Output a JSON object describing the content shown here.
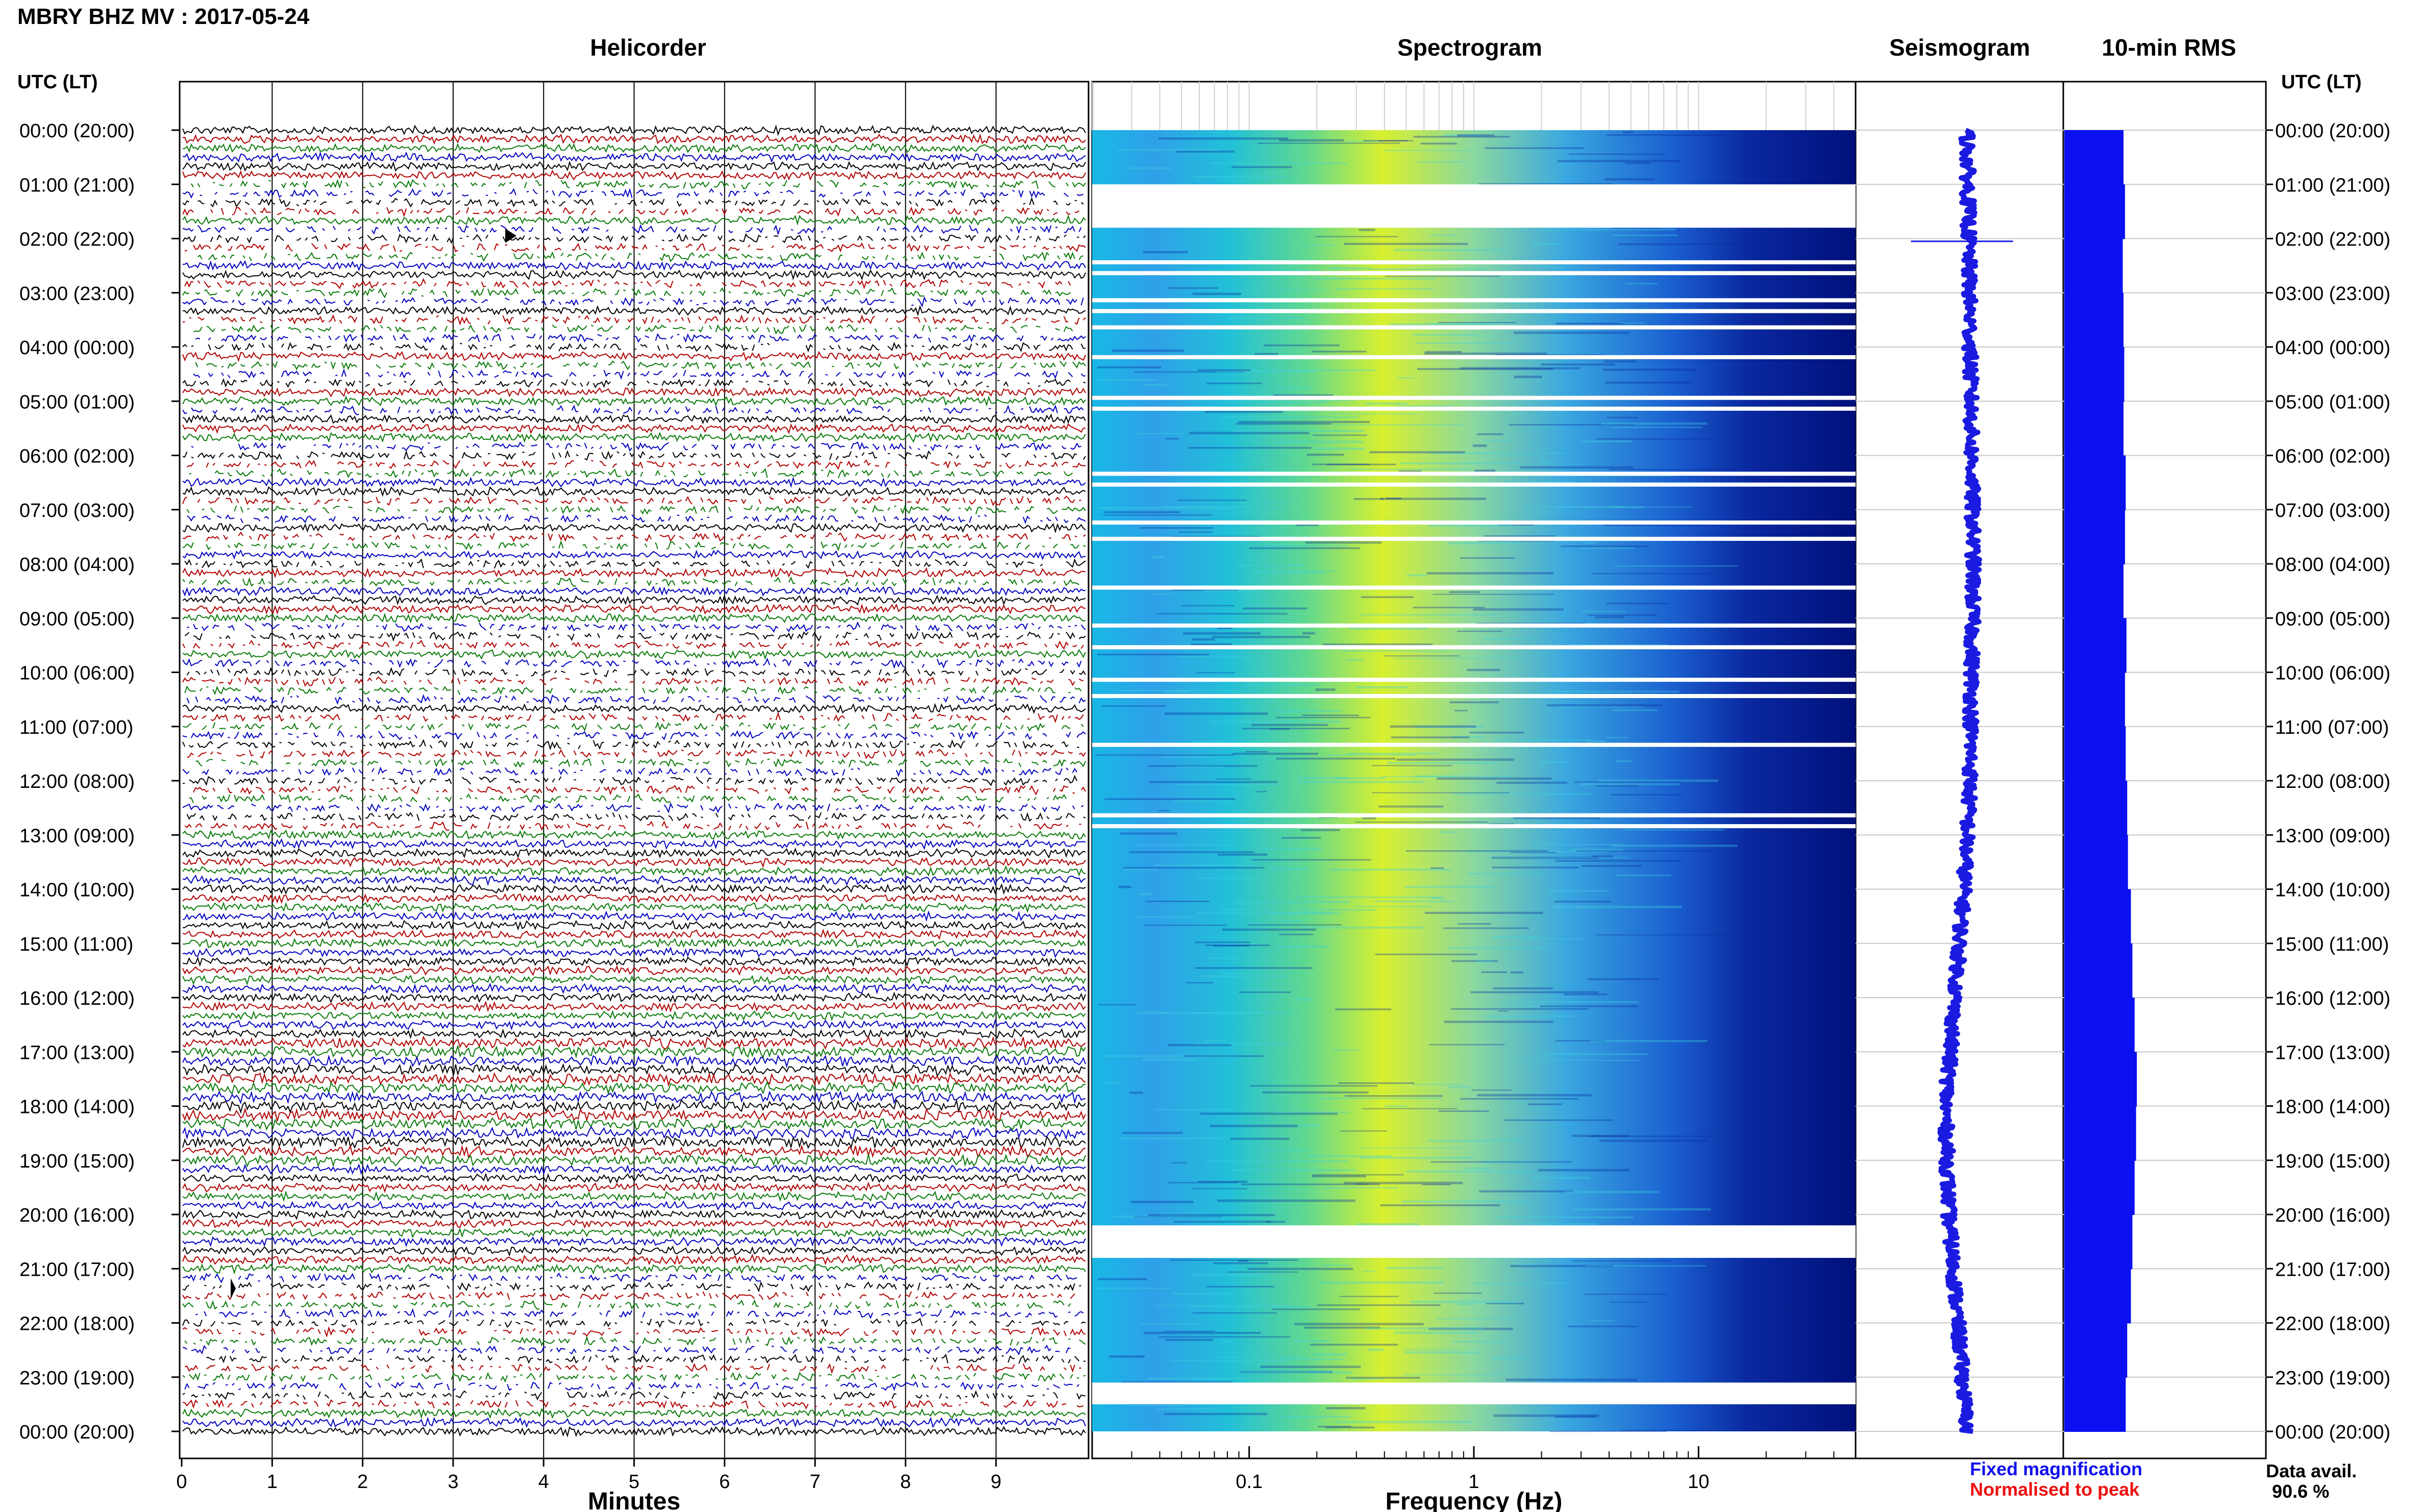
{
  "header": {
    "station_title": "MBRY BHZ MV : 2017-05-24"
  },
  "panels": {
    "helicorder": "Helicorder",
    "spectrogram": "Spectrogram",
    "seismogram": "Seismogram",
    "rms": "10-min RMS"
  },
  "time_axis": {
    "label": "UTC (LT)",
    "ticks": [
      "00:00 (20:00)",
      "01:00 (21:00)",
      "02:00 (22:00)",
      "03:00 (23:00)",
      "04:00 (00:00)",
      "05:00 (01:00)",
      "06:00 (02:00)",
      "07:00 (03:00)",
      "08:00 (04:00)",
      "09:00 (05:00)",
      "10:00 (06:00)",
      "11:00 (07:00)",
      "12:00 (08:00)",
      "13:00 (09:00)",
      "14:00 (10:00)",
      "15:00 (11:00)",
      "16:00 (12:00)",
      "17:00 (13:00)",
      "18:00 (14:00)",
      "19:00 (15:00)",
      "20:00 (16:00)",
      "21:00 (17:00)",
      "22:00 (18:00)",
      "23:00 (19:00)",
      "00:00 (20:00)"
    ]
  },
  "footer": {
    "legend_fixed": "Fixed magnification",
    "legend_normalised": "Normalised to peak",
    "data_avail_label": "Data avail.",
    "data_avail_value": "90.6 %"
  },
  "colors": {
    "trace_colors": [
      "#000000",
      "#b00000",
      "#0a7a0a",
      "#0000c0"
    ],
    "rms_fill": "#0a10f0",
    "seismogram": "#1a1ae0",
    "spec_low": "#00107a",
    "spec_mid": "#19b8e6",
    "spec_high": "#d8f030"
  },
  "chart_data": [
    {
      "type": "line",
      "panel": "helicorder",
      "xlabel": "Minutes",
      "x_ticks": [
        0,
        1,
        2,
        3,
        4,
        5,
        6,
        7,
        8,
        9
      ],
      "xlim": [
        0,
        10
      ],
      "rows_per_hour": 6,
      "hours": 24,
      "gap_rows": [
        6,
        7,
        8,
        9,
        11,
        12,
        13,
        14,
        17,
        18,
        19,
        21,
        22,
        23,
        24,
        26,
        27,
        28,
        31,
        35,
        36,
        37,
        38,
        41,
        42,
        43,
        45,
        46,
        48,
        50,
        55,
        56,
        57,
        59,
        60,
        61,
        62,
        63,
        65,
        66,
        67,
        68,
        69,
        70,
        71,
        72,
        73,
        74,
        75,
        76,
        77,
        127,
        128,
        129,
        130,
        131,
        132,
        133,
        134,
        135,
        136,
        137,
        138,
        139,
        140,
        141
      ]
    },
    {
      "type": "heatmap",
      "panel": "spectrogram",
      "xlabel": "Frequency (Hz)",
      "x_scale": "log",
      "x_ticks": [
        0.1,
        1,
        10
      ],
      "x_tick_labels": [
        "0.1",
        "1",
        "10"
      ],
      "xlim": [
        0.02,
        50
      ],
      "y_range_hours": [
        0,
        24
      ],
      "gaps_hours": [
        [
          1.0,
          1.8
        ],
        [
          20.2,
          20.8
        ],
        [
          23.1,
          23.5
        ]
      ]
    },
    {
      "type": "line",
      "panel": "seismogram",
      "description_points_hours": [
        0,
        4,
        8,
        12,
        14,
        16,
        18,
        20,
        22,
        24
      ],
      "offset": [
        0.0,
        0.05,
        0.1,
        0.05,
        -0.05,
        -0.2,
        -0.35,
        -0.3,
        -0.15,
        0.0
      ]
    },
    {
      "type": "bar",
      "panel": "rms",
      "orientation": "horizontal",
      "bins_hours": [
        0,
        1,
        2,
        3,
        4,
        5,
        6,
        7,
        8,
        9,
        10,
        11,
        12,
        13,
        14,
        15,
        16,
        17,
        18,
        19,
        20,
        21,
        22,
        23
      ],
      "values": [
        0.8,
        0.82,
        0.79,
        0.8,
        0.81,
        0.8,
        0.83,
        0.82,
        0.8,
        0.84,
        0.82,
        0.83,
        0.85,
        0.86,
        0.9,
        0.92,
        0.95,
        0.98,
        0.97,
        0.95,
        0.92,
        0.9,
        0.85,
        0.83
      ]
    }
  ]
}
